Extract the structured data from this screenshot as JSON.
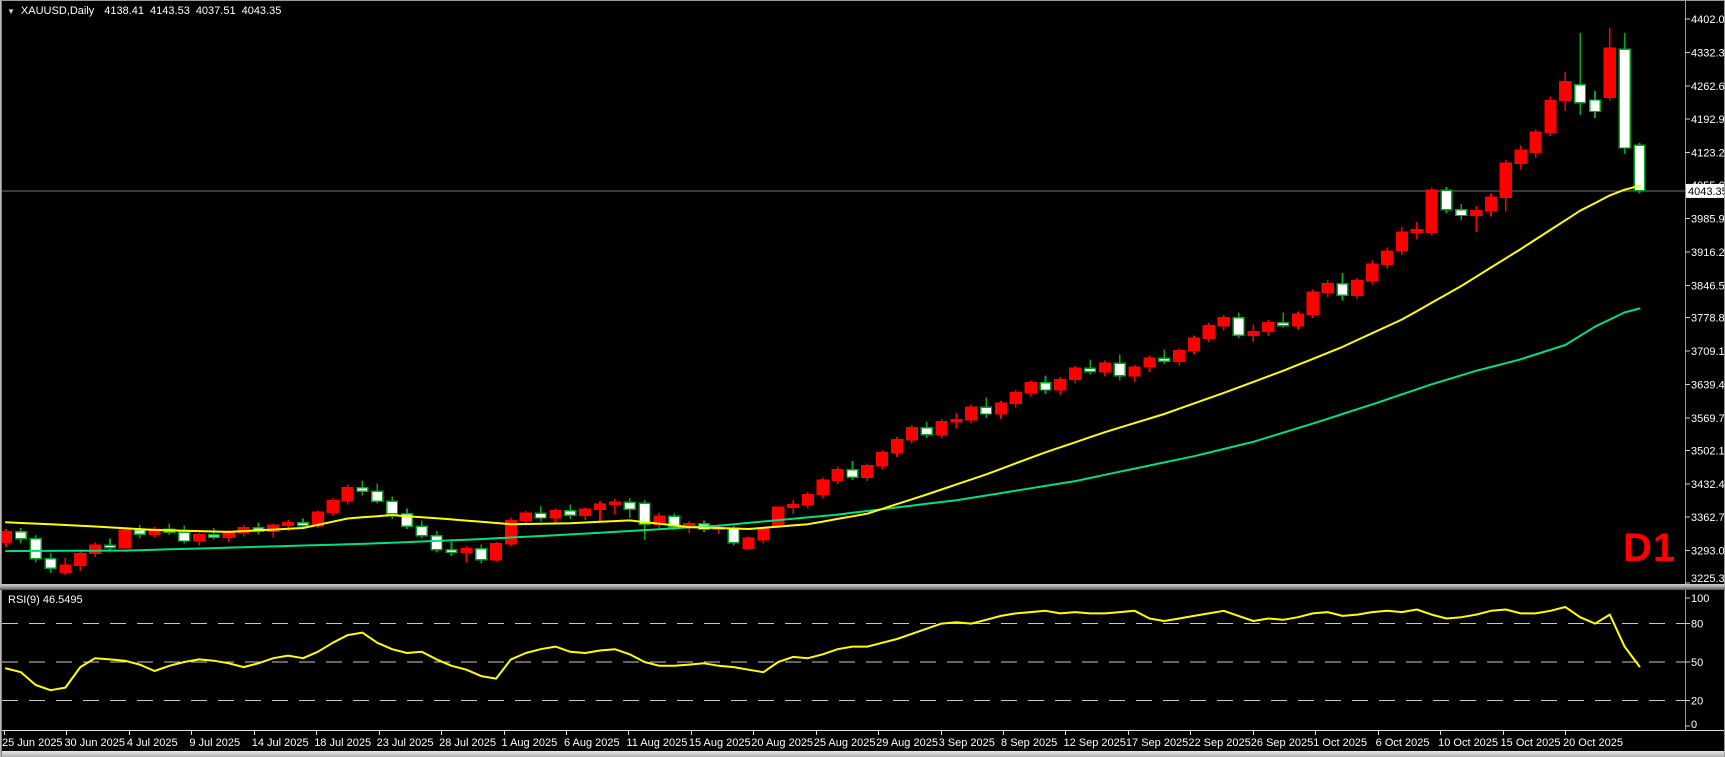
{
  "titlebar": {
    "dropdown_icon": "chart-symbol-dropdown-triangle",
    "symbol": "XAUUSD,Daily",
    "open": "4138.41",
    "high": "4143.53",
    "low": "4037.51",
    "close": "4043.35"
  },
  "watermark": "D1",
  "colors": {
    "background": "#000000",
    "bull": "#ff0000",
    "bear_fill": "#ffffff",
    "bear_border": "#00a520",
    "ma_fast": "#ffff00",
    "ma_slow": "#00df7f",
    "price_line": "#737373",
    "rsi_line": "#ffff00",
    "level_line": "#c8c8c8",
    "axis_text": "#ffffff",
    "watermark_color": "#ff0000",
    "current_price_tag_bg": "#ffffff",
    "current_price_tag_text": "#000000"
  },
  "chart_data": {
    "type": "candlestick",
    "symbol": "XAUUSD",
    "timeframe": "Daily",
    "title": "XAUUSD,Daily  4138.41 4143.53 4037.51 4043.35",
    "legend_position": "none",
    "grid": "off",
    "price_axis_labels": [
      "4402.05",
      "4332.35",
      "4262.65",
      "4192.95",
      "4123.25",
      "4055.60",
      "3985.90",
      "3916.20",
      "3846.50",
      "3778.85",
      "3709.15",
      "3639.45",
      "3569.75",
      "3502.10",
      "3432.40",
      "3362.70",
      "3293.00",
      "3225.35"
    ],
    "ylim": [
      3225.35,
      4402.05
    ],
    "current_price": 4043.35,
    "current_price_label": "4043.35",
    "x_labels": [
      "25 Jun 2025",
      "30 Jun 2025",
      "4 Jul 2025",
      "9 Jul 2025",
      "14 Jul 2025",
      "18 Jul 2025",
      "23 Jul 2025",
      "28 Jul 2025",
      "1 Aug 2025",
      "6 Aug 2025",
      "11 Aug 2025",
      "15 Aug 2025",
      "20 Aug 2025",
      "25 Aug 2025",
      "29 Aug 2025",
      "3 Sep 2025",
      "8 Sep 2025",
      "12 Sep 2025",
      "17 Sep 2025",
      "22 Sep 2025",
      "26 Sep 2025",
      "1 Oct 2025",
      "6 Oct 2025",
      "10 Oct 2025",
      "15 Oct 2025",
      "20 Oct 2025"
    ],
    "candles": [
      [
        3310,
        3338,
        3300,
        3332
      ],
      [
        3332,
        3340,
        3308,
        3318
      ],
      [
        3318,
        3325,
        3268,
        3276
      ],
      [
        3276,
        3288,
        3246,
        3256
      ],
      [
        3248,
        3278,
        3242,
        3262
      ],
      [
        3262,
        3292,
        3250,
        3287
      ],
      [
        3287,
        3310,
        3280,
        3304
      ],
      [
        3304,
        3318,
        3295,
        3299
      ],
      [
        3299,
        3340,
        3297,
        3336
      ],
      [
        3336,
        3346,
        3318,
        3327
      ],
      [
        3327,
        3342,
        3320,
        3338
      ],
      [
        3338,
        3350,
        3325,
        3331
      ],
      [
        3331,
        3345,
        3308,
        3313
      ],
      [
        3313,
        3330,
        3304,
        3326
      ],
      [
        3326,
        3340,
        3316,
        3321
      ],
      [
        3321,
        3336,
        3311,
        3330
      ],
      [
        3330,
        3346,
        3322,
        3341
      ],
      [
        3341,
        3352,
        3327,
        3333
      ],
      [
        3333,
        3349,
        3320,
        3346
      ],
      [
        3346,
        3357,
        3334,
        3351
      ],
      [
        3351,
        3360,
        3339,
        3345
      ],
      [
        3345,
        3377,
        3340,
        3373
      ],
      [
        3373,
        3402,
        3366,
        3397
      ],
      [
        3397,
        3431,
        3389,
        3424
      ],
      [
        3424,
        3439,
        3408,
        3417
      ],
      [
        3417,
        3433,
        3391,
        3396
      ],
      [
        3396,
        3406,
        3359,
        3370
      ],
      [
        3370,
        3381,
        3338,
        3344
      ],
      [
        3344,
        3356,
        3318,
        3324
      ],
      [
        3324,
        3334,
        3289,
        3295
      ],
      [
        3295,
        3312,
        3282,
        3289
      ],
      [
        3289,
        3302,
        3268,
        3297
      ],
      [
        3297,
        3306,
        3266,
        3274
      ],
      [
        3274,
        3311,
        3269,
        3307
      ],
      [
        3307,
        3362,
        3301,
        3355
      ],
      [
        3355,
        3376,
        3346,
        3371
      ],
      [
        3371,
        3386,
        3354,
        3361
      ],
      [
        3361,
        3381,
        3351,
        3376
      ],
      [
        3376,
        3389,
        3359,
        3367
      ],
      [
        3367,
        3383,
        3357,
        3379
      ],
      [
        3379,
        3396,
        3352,
        3390
      ],
      [
        3390,
        3401,
        3368,
        3394
      ],
      [
        3394,
        3403,
        3361,
        3379
      ],
      [
        3392,
        3398,
        3315,
        3348
      ],
      [
        3348,
        3372,
        3339,
        3365
      ],
      [
        3365,
        3370,
        3336,
        3343
      ],
      [
        3343,
        3355,
        3330,
        3349
      ],
      [
        3349,
        3356,
        3332,
        3337
      ],
      [
        3337,
        3348,
        3328,
        3340
      ],
      [
        3340,
        3344,
        3304,
        3309
      ],
      [
        3298,
        3322,
        3294,
        3319
      ],
      [
        3315,
        3342,
        3308,
        3338
      ],
      [
        3346,
        3385,
        3340,
        3383
      ],
      [
        3383,
        3399,
        3369,
        3389
      ],
      [
        3389,
        3415,
        3381,
        3410
      ],
      [
        3410,
        3445,
        3402,
        3440
      ],
      [
        3440,
        3468,
        3432,
        3462
      ],
      [
        3462,
        3480,
        3440,
        3446
      ],
      [
        3446,
        3475,
        3438,
        3470
      ],
      [
        3470,
        3502,
        3462,
        3497
      ],
      [
        3497,
        3530,
        3488,
        3524
      ],
      [
        3524,
        3555,
        3516,
        3549
      ],
      [
        3549,
        3562,
        3528,
        3535
      ],
      [
        3535,
        3568,
        3527,
        3562
      ],
      [
        3562,
        3580,
        3548,
        3566
      ],
      [
        3566,
        3598,
        3558,
        3592
      ],
      [
        3592,
        3612,
        3570,
        3578
      ],
      [
        3578,
        3605,
        3568,
        3600
      ],
      [
        3600,
        3628,
        3592,
        3622
      ],
      [
        3622,
        3648,
        3614,
        3643
      ],
      [
        3643,
        3658,
        3620,
        3628
      ],
      [
        3628,
        3655,
        3618,
        3650
      ],
      [
        3650,
        3678,
        3642,
        3673
      ],
      [
        3673,
        3692,
        3660,
        3666
      ],
      [
        3666,
        3690,
        3656,
        3684
      ],
      [
        3684,
        3702,
        3648,
        3658
      ],
      [
        3658,
        3680,
        3645,
        3676
      ],
      [
        3676,
        3700,
        3666,
        3694
      ],
      [
        3694,
        3712,
        3682,
        3688
      ],
      [
        3688,
        3715,
        3680,
        3710
      ],
      [
        3710,
        3742,
        3702,
        3736
      ],
      [
        3736,
        3768,
        3728,
        3762
      ],
      [
        3762,
        3785,
        3752,
        3779
      ],
      [
        3779,
        3790,
        3736,
        3742
      ],
      [
        3742,
        3765,
        3728,
        3750
      ],
      [
        3750,
        3774,
        3741,
        3768
      ],
      [
        3768,
        3790,
        3758,
        3762
      ],
      [
        3762,
        3792,
        3754,
        3786
      ],
      [
        3786,
        3838,
        3778,
        3832
      ],
      [
        3832,
        3858,
        3822,
        3850
      ],
      [
        3850,
        3872,
        3815,
        3826
      ],
      [
        3826,
        3862,
        3818,
        3856
      ],
      [
        3856,
        3898,
        3848,
        3890
      ],
      [
        3890,
        3925,
        3882,
        3918
      ],
      [
        3918,
        3968,
        3910,
        3957
      ],
      [
        3957,
        3978,
        3942,
        3962
      ],
      [
        3957,
        4050,
        3950,
        4045
      ],
      [
        4045,
        4052,
        3996,
        4004
      ],
      [
        4004,
        4016,
        3982,
        3992
      ],
      [
        3992,
        4012,
        3958,
        4002
      ],
      [
        4002,
        4038,
        3990,
        4030
      ],
      [
        4030,
        4108,
        4000,
        4101
      ],
      [
        4101,
        4138,
        4088,
        4128
      ],
      [
        4124,
        4172,
        4112,
        4166
      ],
      [
        4166,
        4240,
        4158,
        4232
      ],
      [
        4232,
        4291,
        4210,
        4271
      ],
      [
        4265,
        4373,
        4202,
        4227
      ],
      [
        4233,
        4252,
        4196,
        4209
      ],
      [
        4239,
        4383,
        4232,
        4341
      ],
      [
        4339,
        4373,
        4120,
        4133
      ],
      [
        4138.41,
        4143.53,
        4037.51,
        4043.35
      ]
    ],
    "ma_fast": {
      "name": "MA fast (yellow)",
      "color": "#ffff00",
      "anchors": [
        [
          0,
          3352
        ],
        [
          5,
          3345
        ],
        [
          10,
          3336
        ],
        [
          15,
          3332
        ],
        [
          20,
          3340
        ],
        [
          23,
          3360
        ],
        [
          26,
          3367
        ],
        [
          30,
          3358
        ],
        [
          34,
          3348
        ],
        [
          38,
          3350
        ],
        [
          42,
          3356
        ],
        [
          46,
          3342
        ],
        [
          50,
          3338
        ],
        [
          54,
          3348
        ],
        [
          58,
          3370
        ],
        [
          62,
          3410
        ],
        [
          66,
          3452
        ],
        [
          70,
          3498
        ],
        [
          74,
          3540
        ],
        [
          78,
          3578
        ],
        [
          82,
          3622
        ],
        [
          86,
          3668
        ],
        [
          90,
          3718
        ],
        [
          94,
          3775
        ],
        [
          98,
          3845
        ],
        [
          102,
          3922
        ],
        [
          104,
          3962
        ],
        [
          106,
          4002
        ],
        [
          108,
          4034
        ],
        [
          109,
          4046
        ],
        [
          110,
          4054
        ]
      ]
    },
    "ma_slow": {
      "name": "MA slow (green)",
      "color": "#00df7f",
      "anchors": [
        [
          0,
          3292
        ],
        [
          8,
          3293
        ],
        [
          16,
          3300
        ],
        [
          24,
          3307
        ],
        [
          32,
          3317
        ],
        [
          40,
          3330
        ],
        [
          48,
          3345
        ],
        [
          56,
          3368
        ],
        [
          64,
          3398
        ],
        [
          72,
          3438
        ],
        [
          80,
          3490
        ],
        [
          84,
          3520
        ],
        [
          88,
          3558
        ],
        [
          92,
          3598
        ],
        [
          96,
          3640
        ],
        [
          99,
          3668
        ],
        [
          102,
          3692
        ],
        [
          105,
          3722
        ],
        [
          107,
          3760
        ],
        [
          109,
          3790
        ],
        [
          110,
          3798
        ]
      ]
    },
    "rsi": {
      "label": "RSI(9) 46.5495",
      "period": 9,
      "value": 46.5495,
      "levels": [
        80,
        50,
        20
      ],
      "axis_labels": [
        "100",
        "80",
        "50",
        "20",
        "0"
      ],
      "ylim": [
        0,
        100
      ],
      "values": [
        45,
        42,
        32,
        28,
        30,
        46,
        53,
        52,
        51,
        48,
        43,
        47,
        50,
        52,
        51,
        49,
        46,
        49,
        53,
        55,
        53,
        58,
        65,
        71,
        73,
        65,
        60,
        57,
        58,
        52,
        47,
        44,
        39,
        37,
        52,
        57,
        60,
        62,
        58,
        57,
        59,
        60,
        56,
        50,
        47,
        47,
        48,
        49,
        47,
        46,
        44,
        42,
        50,
        54,
        53,
        56,
        60,
        62,
        62,
        65,
        68,
        72,
        76,
        80,
        81,
        80,
        83,
        86,
        88,
        89,
        90,
        88,
        89,
        88,
        88,
        89,
        90,
        84,
        82,
        84,
        86,
        88,
        90,
        86,
        82,
        84,
        83,
        85,
        88,
        89,
        86,
        87,
        89,
        90,
        89,
        91,
        87,
        84,
        85,
        87,
        90,
        91,
        88,
        88,
        90,
        93,
        85,
        80,
        87,
        62,
        46.5
      ]
    }
  }
}
